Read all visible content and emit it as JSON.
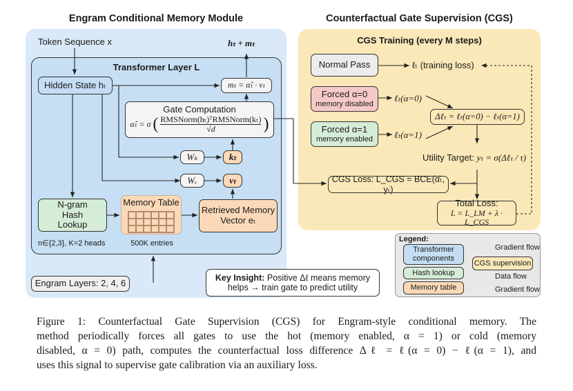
{
  "left": {
    "title": "Engram Conditional Memory Module",
    "token_sequence": "Token Sequence x",
    "output": "hₜ + mₜ",
    "layer_title": "Transformer Layer L",
    "hidden_state": "Hidden State hₜ",
    "mt": "mₜ = α̂ₜ · vₜ",
    "gate_title": "Gate Computation",
    "gate_formula_lhs": "α̂ₜ = σ",
    "gate_num": "RMSNorm(hₜ)ᵀRMSNorm(kₜ)",
    "gate_den": "√d",
    "wk": "Wₖ",
    "kt": "kₜ",
    "wv": "Wᵥ",
    "vt": "vₜ",
    "ngram": "N-gram Hash Lookup",
    "ngram_note": "n∈{2,3}, K=2 heads",
    "memory_table": "Memory Table",
    "memory_entries": "500K entries",
    "retrieved": "Retrieved Memory Vector eₜ",
    "engram_layers": "Engram Layers: 2, 4, 6"
  },
  "right": {
    "title": "Counterfactual Gate Supervision (CGS)",
    "training_title": "CGS Training (every M steps)",
    "normal_pass": "Normal Pass",
    "training_loss": "ℓₜ (training loss)",
    "forced0": "Forced α=0",
    "forced0_sub": "memory disabled",
    "loss0": "ℓₜ(α=0)",
    "forced1": "Forced α=1",
    "forced1_sub": "memory enabled",
    "loss1": "ℓₜ(α=1)",
    "delta": "Δℓₜ = ℓₜ(α=0) − ℓₜ(α=1)",
    "utility_label": "Utility Target:",
    "utility_formula": "yₜ = σ(Δℓₜ / τ)",
    "cgs_loss": "CGS Loss: L_CGS = BCE(α̂ₜ, yₜ)",
    "total_title": "Total Loss:",
    "total_formula": "L = L_LM + λ · L_CGS"
  },
  "key_insight": {
    "bold": "Key Insight:",
    "line1": " Positive Δℓ means memory",
    "line2": "helps → train gate to predict utility"
  },
  "legend": {
    "title": "Legend:",
    "items": [
      "Transformer components",
      "Hash lookup",
      "Memory table",
      "CGS supervision"
    ],
    "arrows": [
      "Gradient flow",
      "Data flow",
      "Gradient flow"
    ]
  },
  "caption": {
    "lines": [
      "Figure 1:  Counterfactual Gate Supervision (CGS) for Engram-style conditional memory.  The",
      "method periodically forces all gates to use the hot (memory enabled, α = 1) or cold (memory",
      "disabled, α = 0) path, computes the counterfactual loss difference Δℓ = ℓ(α = 0) − ℓ(α = 1), and",
      "uses this signal to supervise gate calibration via an auxiliary loss."
    ]
  },
  "colors": {
    "blue_panel": "#d9e9f7",
    "blue_box": "#c4ddf3",
    "yellow": "#fbe8b8",
    "green": "#d5ecd6",
    "pink": "#f6c9c9",
    "orange": "#fbd9b8",
    "gray": "#ececec"
  }
}
